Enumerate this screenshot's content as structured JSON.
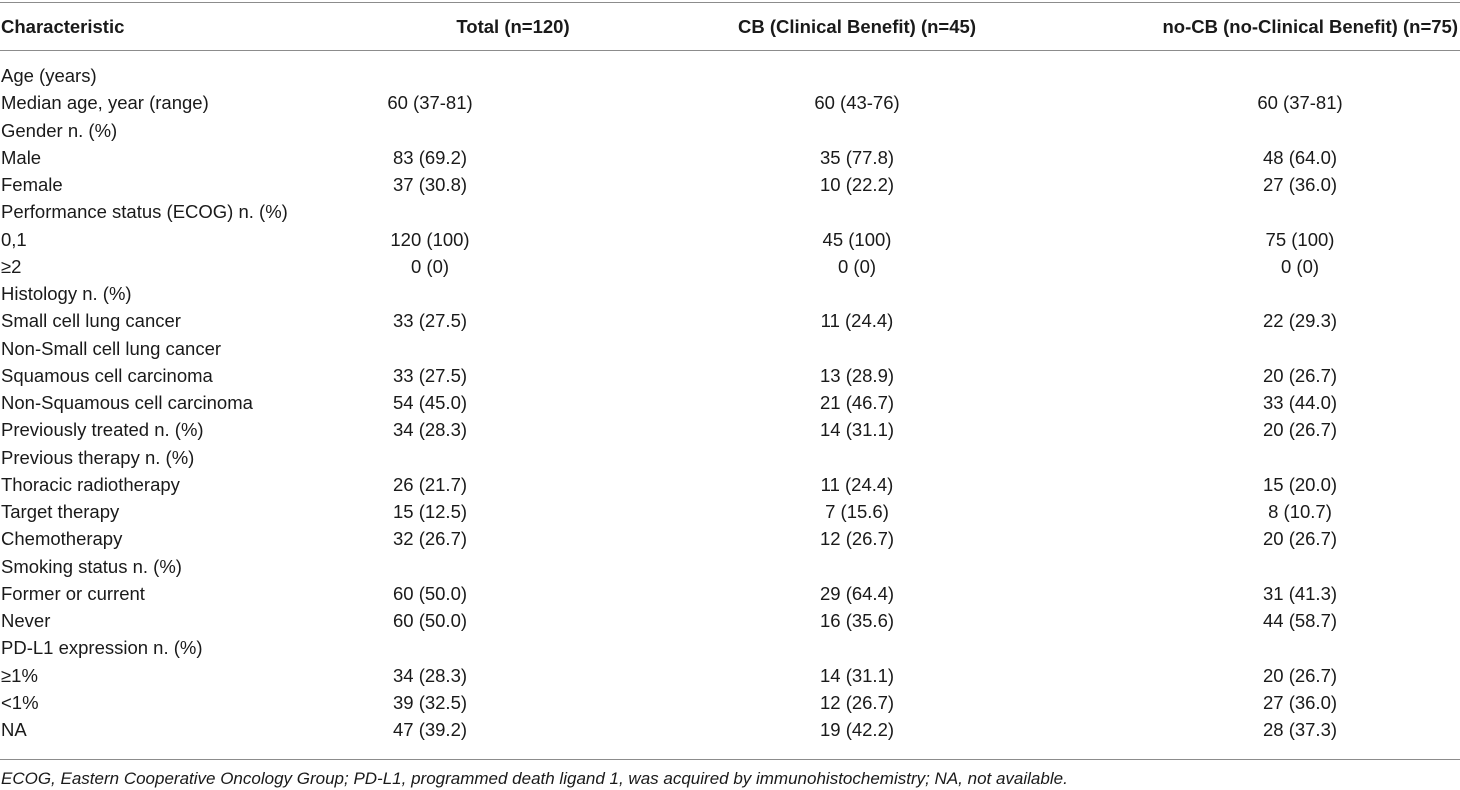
{
  "headers": [
    "Characteristic",
    "Total (n=120)",
    "CB (Clinical Benefit) (n=45)",
    "no-CB (no-Clinical Benefit) (n=75)"
  ],
  "rows": [
    [
      "Age  (years)",
      "",
      "",
      ""
    ],
    [
      "Median age, year  (range)",
      "60 (37-81)",
      "60 (43-76)",
      "60 (37-81)"
    ],
    [
      "Gender n. (%)",
      "",
      "",
      ""
    ],
    [
      "Male",
      "83 (69.2)",
      "35 (77.8)",
      "48 (64.0)"
    ],
    [
      "Female",
      "37 (30.8)",
      "10 (22.2)",
      "27 (36.0)"
    ],
    [
      "Performance status (ECOG) n. (%)",
      "",
      "",
      ""
    ],
    [
      "0,1",
      "120 (100)",
      "45 (100)",
      "75 (100)"
    ],
    [
      "≥2",
      "0 (0)",
      "0 (0)",
      "0 (0)"
    ],
    [
      "Histology n. (%)",
      "",
      "",
      ""
    ],
    [
      "Small cell lung cancer",
      "33 (27.5)",
      "11 (24.4)",
      "22 (29.3)"
    ],
    [
      "Non-Small cell lung cancer",
      "",
      "",
      ""
    ],
    [
      "Squamous cell carcinoma",
      "33 (27.5)",
      "13 (28.9)",
      "20 (26.7)"
    ],
    [
      "Non-Squamous cell carcinoma",
      "54 (45.0)",
      "21 (46.7)",
      "33 (44.0)"
    ],
    [
      "Previously treated n. (%)",
      "34 (28.3)",
      "14 (31.1)",
      "20 (26.7)"
    ],
    [
      "Previous therapy n. (%)",
      "",
      "",
      ""
    ],
    [
      "Thoracic radiotherapy",
      "26 (21.7)",
      "11 (24.4)",
      "15 (20.0)"
    ],
    [
      "Target therapy",
      "15 (12.5)",
      "7 (15.6)",
      "8 (10.7)"
    ],
    [
      "Chemotherapy",
      "32 (26.7)",
      "12 (26.7)",
      "20 (26.7)"
    ],
    [
      "Smoking status n. (%)",
      "",
      "",
      ""
    ],
    [
      "Former or current",
      "60 (50.0)",
      "29 (64.4)",
      "31 (41.3)"
    ],
    [
      "Never",
      "60 (50.0)",
      "16 (35.6)",
      "44 (58.7)"
    ],
    [
      "PD-L1 expression n. (%)",
      "",
      "",
      ""
    ],
    [
      "≥1%",
      "34 (28.3)",
      "14 (31.1)",
      "20 (26.7)"
    ],
    [
      "<1%",
      "39 (32.5)",
      "12 (26.7)",
      "27 (36.0)"
    ],
    [
      "NA",
      "47 (39.2)",
      "19 (42.2)",
      "28 (37.3)"
    ]
  ],
  "footnote": "ECOG, Eastern Cooperative Oncology Group; PD-L1, programmed death ligand 1, was acquired by immunohistochemistry; NA, not available."
}
